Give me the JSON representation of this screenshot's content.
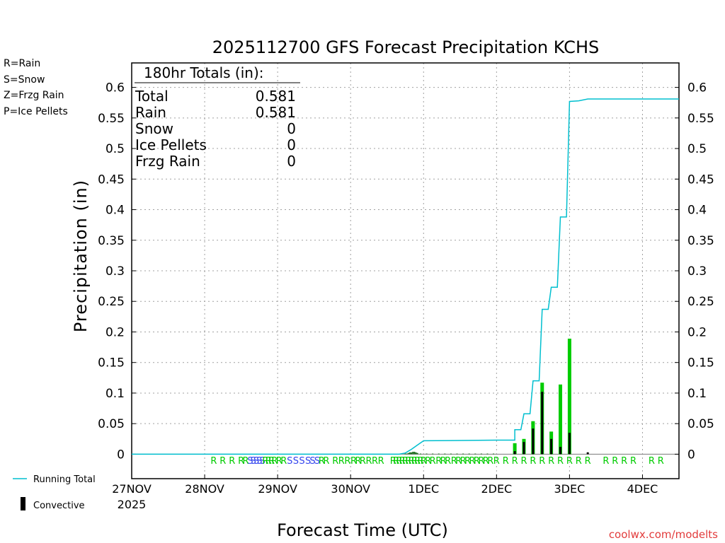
{
  "chart_data": {
    "type": "bar",
    "title": "2025112700 GFS Forecast Precipitation KCHS",
    "xlabel": "Forecast Time (UTC)",
    "ylabel": "Precipitation (in)",
    "ylim": [
      -0.04,
      0.64
    ],
    "xlim_hours": [
      0,
      180
    ],
    "y_ticks": [
      0,
      0.05,
      0.1,
      0.15,
      0.2,
      0.25,
      0.3,
      0.35,
      0.4,
      0.45,
      0.5,
      0.55,
      0.6
    ],
    "y_tick_labels": [
      "0",
      "0.05",
      "0.1",
      "0.15",
      "0.2",
      "0.25",
      "0.3",
      "0.35",
      "0.4",
      "0.45",
      "0.5",
      "0.55",
      "0.6"
    ],
    "x_ticks": [
      {
        "hour": 0,
        "label": "27NOV",
        "sublabel": "2025"
      },
      {
        "hour": 24,
        "label": "28NOV"
      },
      {
        "hour": 48,
        "label": "29NOV"
      },
      {
        "hour": 72,
        "label": "30NOV"
      },
      {
        "hour": 96,
        "label": "1DEC"
      },
      {
        "hour": 120,
        "label": "2DEC"
      },
      {
        "hour": 144,
        "label": "3DEC"
      },
      {
        "hour": 168,
        "label": "4DEC"
      }
    ],
    "colors": {
      "rain": "#00cc00",
      "snow": "#3344ee",
      "frzg": "#ff8c1a",
      "ice": "#ee1188",
      "running": "#00bfcf",
      "convective": "#000000",
      "axis": "#000000",
      "grid": "#a0a0a0"
    },
    "bars_total": [
      {
        "h": 90,
        "v": 0.001
      },
      {
        "h": 90.5,
        "v": 0.001
      },
      {
        "h": 91,
        "v": 0.002
      },
      {
        "h": 91.5,
        "v": 0.003
      },
      {
        "h": 92,
        "v": 0.003
      },
      {
        "h": 92.5,
        "v": 0.004
      },
      {
        "h": 93,
        "v": 0.004
      },
      {
        "h": 93.5,
        "v": 0.003
      },
      {
        "h": 94,
        "v": 0.002
      },
      {
        "h": 95,
        "v": 0.001
      },
      {
        "h": 97,
        "v": 0.001
      },
      {
        "h": 99,
        "v": 0.001
      },
      {
        "h": 101,
        "v": 0.001
      },
      {
        "h": 103,
        "v": 0.001
      },
      {
        "h": 105,
        "v": 0.001
      },
      {
        "h": 107,
        "v": 0.001
      },
      {
        "h": 109,
        "v": 0.001
      },
      {
        "h": 111,
        "v": 0.001
      },
      {
        "h": 113,
        "v": 0.001
      },
      {
        "h": 115,
        "v": 0.001
      },
      {
        "h": 117,
        "v": 0.001
      },
      {
        "h": 119,
        "v": 0.001
      },
      {
        "h": 126,
        "v": 0.018
      },
      {
        "h": 129,
        "v": 0.025
      },
      {
        "h": 132,
        "v": 0.054
      },
      {
        "h": 135,
        "v": 0.117
      },
      {
        "h": 138,
        "v": 0.037
      },
      {
        "h": 141,
        "v": 0.114
      },
      {
        "h": 144,
        "v": 0.189
      },
      {
        "h": 150,
        "v": 0.003
      }
    ],
    "bars_convective": [
      {
        "h": 126,
        "v": 0.005
      },
      {
        "h": 129,
        "v": 0.02
      },
      {
        "h": 132,
        "v": 0.042
      },
      {
        "h": 135,
        "v": 0.102
      },
      {
        "h": 138,
        "v": 0.025
      },
      {
        "h": 141,
        "v": 0.012
      },
      {
        "h": 144,
        "v": 0.035
      },
      {
        "h": 150,
        "v": 0.003
      }
    ],
    "running_total": [
      {
        "h": 0,
        "v": 0
      },
      {
        "h": 88,
        "v": 0
      },
      {
        "h": 90,
        "v": 0.002
      },
      {
        "h": 92,
        "v": 0.008
      },
      {
        "h": 94,
        "v": 0.015
      },
      {
        "h": 96,
        "v": 0.022
      },
      {
        "h": 120,
        "v": 0.023
      },
      {
        "h": 126,
        "v": 0.023
      },
      {
        "h": 126,
        "v": 0.04
      },
      {
        "h": 128,
        "v": 0.04
      },
      {
        "h": 129,
        "v": 0.066
      },
      {
        "h": 131,
        "v": 0.066
      },
      {
        "h": 132,
        "v": 0.12
      },
      {
        "h": 134,
        "v": 0.12
      },
      {
        "h": 135,
        "v": 0.237
      },
      {
        "h": 137,
        "v": 0.237
      },
      {
        "h": 138,
        "v": 0.273
      },
      {
        "h": 140,
        "v": 0.273
      },
      {
        "h": 141,
        "v": 0.388
      },
      {
        "h": 143,
        "v": 0.388
      },
      {
        "h": 144,
        "v": 0.577
      },
      {
        "h": 147,
        "v": 0.578
      },
      {
        "h": 150,
        "v": 0.581
      },
      {
        "h": 180,
        "v": 0.581
      }
    ],
    "ptype_markers": [
      {
        "h": 27,
        "t": "R"
      },
      {
        "h": 30,
        "t": "R"
      },
      {
        "h": 33,
        "t": "R"
      },
      {
        "h": 36,
        "t": "R"
      },
      {
        "h": 37.5,
        "t": "R"
      },
      {
        "h": 39,
        "t": "S"
      },
      {
        "h": 40,
        "t": "S"
      },
      {
        "h": 41,
        "t": "S"
      },
      {
        "h": 42,
        "t": "S"
      },
      {
        "h": 43,
        "t": "S"
      },
      {
        "h": 44,
        "t": "R"
      },
      {
        "h": 45,
        "t": "R"
      },
      {
        "h": 46,
        "t": "R"
      },
      {
        "h": 47,
        "t": "R"
      },
      {
        "h": 48.5,
        "t": "R"
      },
      {
        "h": 50,
        "t": "R"
      },
      {
        "h": 52,
        "t": "S"
      },
      {
        "h": 54,
        "t": "S"
      },
      {
        "h": 56,
        "t": "S"
      },
      {
        "h": 58,
        "t": "S"
      },
      {
        "h": 59.5,
        "t": "S"
      },
      {
        "h": 61,
        "t": "S"
      },
      {
        "h": 62.5,
        "t": "R"
      },
      {
        "h": 64,
        "t": "R"
      },
      {
        "h": 67,
        "t": "R"
      },
      {
        "h": 69,
        "t": "R"
      },
      {
        "h": 71,
        "t": "R"
      },
      {
        "h": 73,
        "t": "R"
      },
      {
        "h": 74.5,
        "t": "R"
      },
      {
        "h": 76,
        "t": "R"
      },
      {
        "h": 78,
        "t": "R"
      },
      {
        "h": 80,
        "t": "R"
      },
      {
        "h": 82,
        "t": "R"
      },
      {
        "h": 86,
        "t": "R"
      },
      {
        "h": 87,
        "t": "R"
      },
      {
        "h": 88,
        "t": "R"
      },
      {
        "h": 89,
        "t": "R"
      },
      {
        "h": 90,
        "t": "R"
      },
      {
        "h": 91,
        "t": "R"
      },
      {
        "h": 92,
        "t": "R"
      },
      {
        "h": 93,
        "t": "R"
      },
      {
        "h": 94,
        "t": "R"
      },
      {
        "h": 95,
        "t": "R"
      },
      {
        "h": 96,
        "t": "R"
      },
      {
        "h": 97.5,
        "t": "R"
      },
      {
        "h": 99,
        "t": "R"
      },
      {
        "h": 101,
        "t": "R"
      },
      {
        "h": 102.5,
        "t": "R"
      },
      {
        "h": 104,
        "t": "R"
      },
      {
        "h": 106,
        "t": "R"
      },
      {
        "h": 107.5,
        "t": "R"
      },
      {
        "h": 109,
        "t": "R"
      },
      {
        "h": 110.5,
        "t": "R"
      },
      {
        "h": 112,
        "t": "R"
      },
      {
        "h": 113.5,
        "t": "R"
      },
      {
        "h": 115,
        "t": "R"
      },
      {
        "h": 116.5,
        "t": "R"
      },
      {
        "h": 118,
        "t": "R"
      },
      {
        "h": 120,
        "t": "R"
      },
      {
        "h": 123,
        "t": "R"
      },
      {
        "h": 126,
        "t": "R"
      },
      {
        "h": 129,
        "t": "R"
      },
      {
        "h": 132,
        "t": "R"
      },
      {
        "h": 135,
        "t": "R"
      },
      {
        "h": 138,
        "t": "R"
      },
      {
        "h": 141,
        "t": "R"
      },
      {
        "h": 144,
        "t": "R"
      },
      {
        "h": 147,
        "t": "R"
      },
      {
        "h": 150,
        "t": "R"
      },
      {
        "h": 156,
        "t": "R"
      },
      {
        "h": 159,
        "t": "R"
      },
      {
        "h": 162,
        "t": "R"
      },
      {
        "h": 165,
        "t": "R"
      },
      {
        "h": 171,
        "t": "R"
      },
      {
        "h": 174,
        "t": "R"
      }
    ],
    "totals_box": {
      "header": "180hr Totals (in):",
      "rows": [
        {
          "label": "Total",
          "value": "0.581"
        },
        {
          "label": "Rain",
          "value": "0.581"
        },
        {
          "label": "Snow",
          "value": "0"
        },
        {
          "label": "Ice Pellets",
          "value": "0"
        },
        {
          "label": "Frzg Rain",
          "value": "0"
        }
      ]
    },
    "legend": {
      "ptype": [
        {
          "text": "R=Rain",
          "color": "#00cc00"
        },
        {
          "text": "S=Snow",
          "color": "#3344ee"
        },
        {
          "text": "Z=Frzg Rain",
          "color": "#ff8c1a"
        },
        {
          "text": "P=Ice Pellets",
          "color": "#ee1188"
        }
      ],
      "running_total": "Running Total",
      "convective": "Convective"
    },
    "credit": "coolwx.com/modelts"
  }
}
